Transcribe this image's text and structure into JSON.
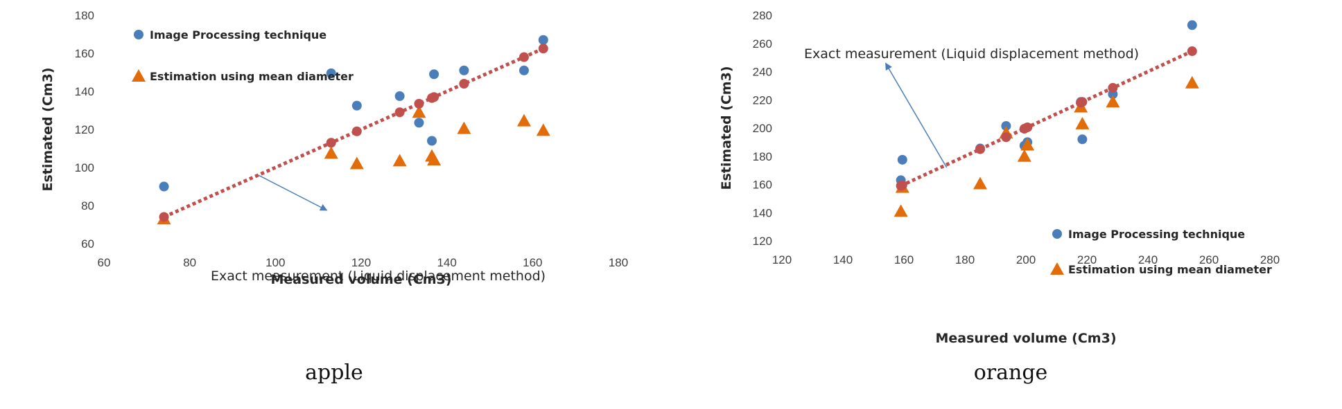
{
  "chart_data": [
    {
      "type": "scatter",
      "caption": "apple",
      "xlabel": "Measured volume (Cm3)",
      "ylabel": "Estimated (Cm3)",
      "xlim": [
        60,
        180
      ],
      "ylim": [
        60,
        180
      ],
      "xticks": [
        60,
        80,
        100,
        120,
        140,
        160,
        180
      ],
      "yticks": [
        60,
        80,
        100,
        120,
        140,
        160,
        180
      ],
      "grid": false,
      "legend_placement": "top-left",
      "series": [
        {
          "name": "Image Processing technique",
          "marker": "circle",
          "color": "#4a7ebb",
          "points": [
            [
              74,
              90
            ],
            [
              113,
              149.5
            ],
            [
              119,
              132.5
            ],
            [
              129,
              137.5
            ],
            [
              133.5,
              123.5
            ],
            [
              136.5,
              114
            ],
            [
              137,
              149
            ],
            [
              144,
              151
            ],
            [
              158,
              151
            ],
            [
              162.5,
              167
            ]
          ]
        },
        {
          "name": "Estimation using mean diameter",
          "marker": "triangle",
          "color": "#e36c0a",
          "points": [
            [
              74,
              73
            ],
            [
              113,
              107.5
            ],
            [
              119,
              102
            ],
            [
              129,
              103.5
            ],
            [
              133.5,
              129
            ],
            [
              136.5,
              106
            ],
            [
              137,
              104
            ],
            [
              144,
              120.5
            ],
            [
              158,
              124.5
            ],
            [
              162.5,
              119.5
            ]
          ]
        },
        {
          "name": "Exact measurement (Liquid displacement method)",
          "marker": "circle-dotted-line",
          "color": "#c0504d",
          "points": [
            [
              74,
              74
            ],
            [
              113,
              113
            ],
            [
              119,
              119
            ],
            [
              129,
              129
            ],
            [
              133.5,
              133.5
            ],
            [
              136.5,
              136.5
            ],
            [
              137,
              137
            ],
            [
              144,
              144
            ],
            [
              158,
              158
            ],
            [
              162.5,
              162.5
            ]
          ]
        }
      ],
      "annotation": {
        "text": "Exact measurement (Liquid displacement method)",
        "arrow_from": [
          96,
          96
        ],
        "arrow_to": [
          112,
          77.5
        ]
      }
    },
    {
      "type": "scatter",
      "caption": "orange",
      "xlabel": "Measured volume (Cm3)",
      "ylabel": "Estimated (Cm3)",
      "xlim": [
        120,
        280
      ],
      "ylim": [
        120,
        280
      ],
      "xticks": [
        120,
        140,
        160,
        180,
        200,
        220,
        240,
        260,
        280
      ],
      "yticks": [
        120,
        140,
        160,
        180,
        200,
        220,
        240,
        260,
        280
      ],
      "grid": false,
      "legend_placement": "bottom-right",
      "series": [
        {
          "name": "Image Processing technique",
          "marker": "circle",
          "color": "#4a7ebb",
          "points": [
            [
              159,
              163
            ],
            [
              159.5,
              177.5
            ],
            [
              185,
              185.5
            ],
            [
              193.5,
              201.5
            ],
            [
              199.5,
              187.5
            ],
            [
              200.5,
              190
            ],
            [
              218,
              218.5
            ],
            [
              218.5,
              192
            ],
            [
              228.5,
              224
            ],
            [
              254.5,
              273
            ]
          ]
        },
        {
          "name": "Estimation using mean diameter",
          "marker": "triangle",
          "color": "#e36c0a",
          "points": [
            [
              159,
              141
            ],
            [
              159.5,
              158
            ],
            [
              185,
              160.5
            ],
            [
              193.5,
              196.5
            ],
            [
              199.5,
              180
            ],
            [
              200.5,
              188
            ],
            [
              218,
              215
            ],
            [
              218.5,
              203
            ],
            [
              228.5,
              218.5
            ],
            [
              254.5,
              232
            ]
          ]
        },
        {
          "name": "Exact measurement (Liquid displacement method)",
          "marker": "circle-dotted-line",
          "color": "#c0504d",
          "points": [
            [
              159,
              159
            ],
            [
              159.5,
              159.5
            ],
            [
              185,
              185
            ],
            [
              193.5,
              193.5
            ],
            [
              199.5,
              199.5
            ],
            [
              200.5,
              200.5
            ],
            [
              218,
              218
            ],
            [
              218.5,
              218.5
            ],
            [
              228.5,
              228.5
            ],
            [
              254.5,
              254.5
            ]
          ]
        }
      ],
      "annotation": {
        "text": "Exact measurement (Liquid displacement method)",
        "arrow_from": [
          174,
          172
        ],
        "arrow_to": [
          154,
          246
        ]
      }
    }
  ]
}
